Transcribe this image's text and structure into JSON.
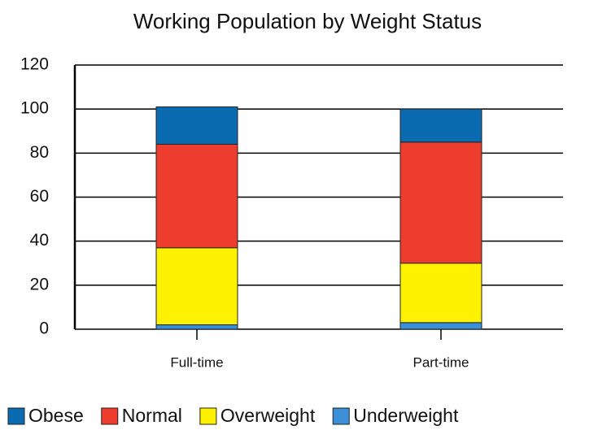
{
  "chart_data": {
    "type": "stacked_bar",
    "title": "Working Population by Weight Status",
    "categories": [
      "Full-time",
      "Part-time"
    ],
    "series": [
      {
        "name": "Obese",
        "color": "#0a6bb0",
        "values": [
          17,
          15
        ]
      },
      {
        "name": "Normal",
        "color": "#ee3c2f",
        "values": [
          47,
          55
        ]
      },
      {
        "name": "Overweight",
        "color": "#fff200",
        "values": [
          35,
          27
        ]
      },
      {
        "name": "Underweight",
        "color": "#3b8fd6",
        "values": [
          2,
          3
        ]
      }
    ],
    "ylim": [
      0,
      120
    ],
    "yticks": [
      0,
      20,
      40,
      60,
      80,
      100,
      120
    ],
    "grid": true,
    "legend": "bottom"
  }
}
